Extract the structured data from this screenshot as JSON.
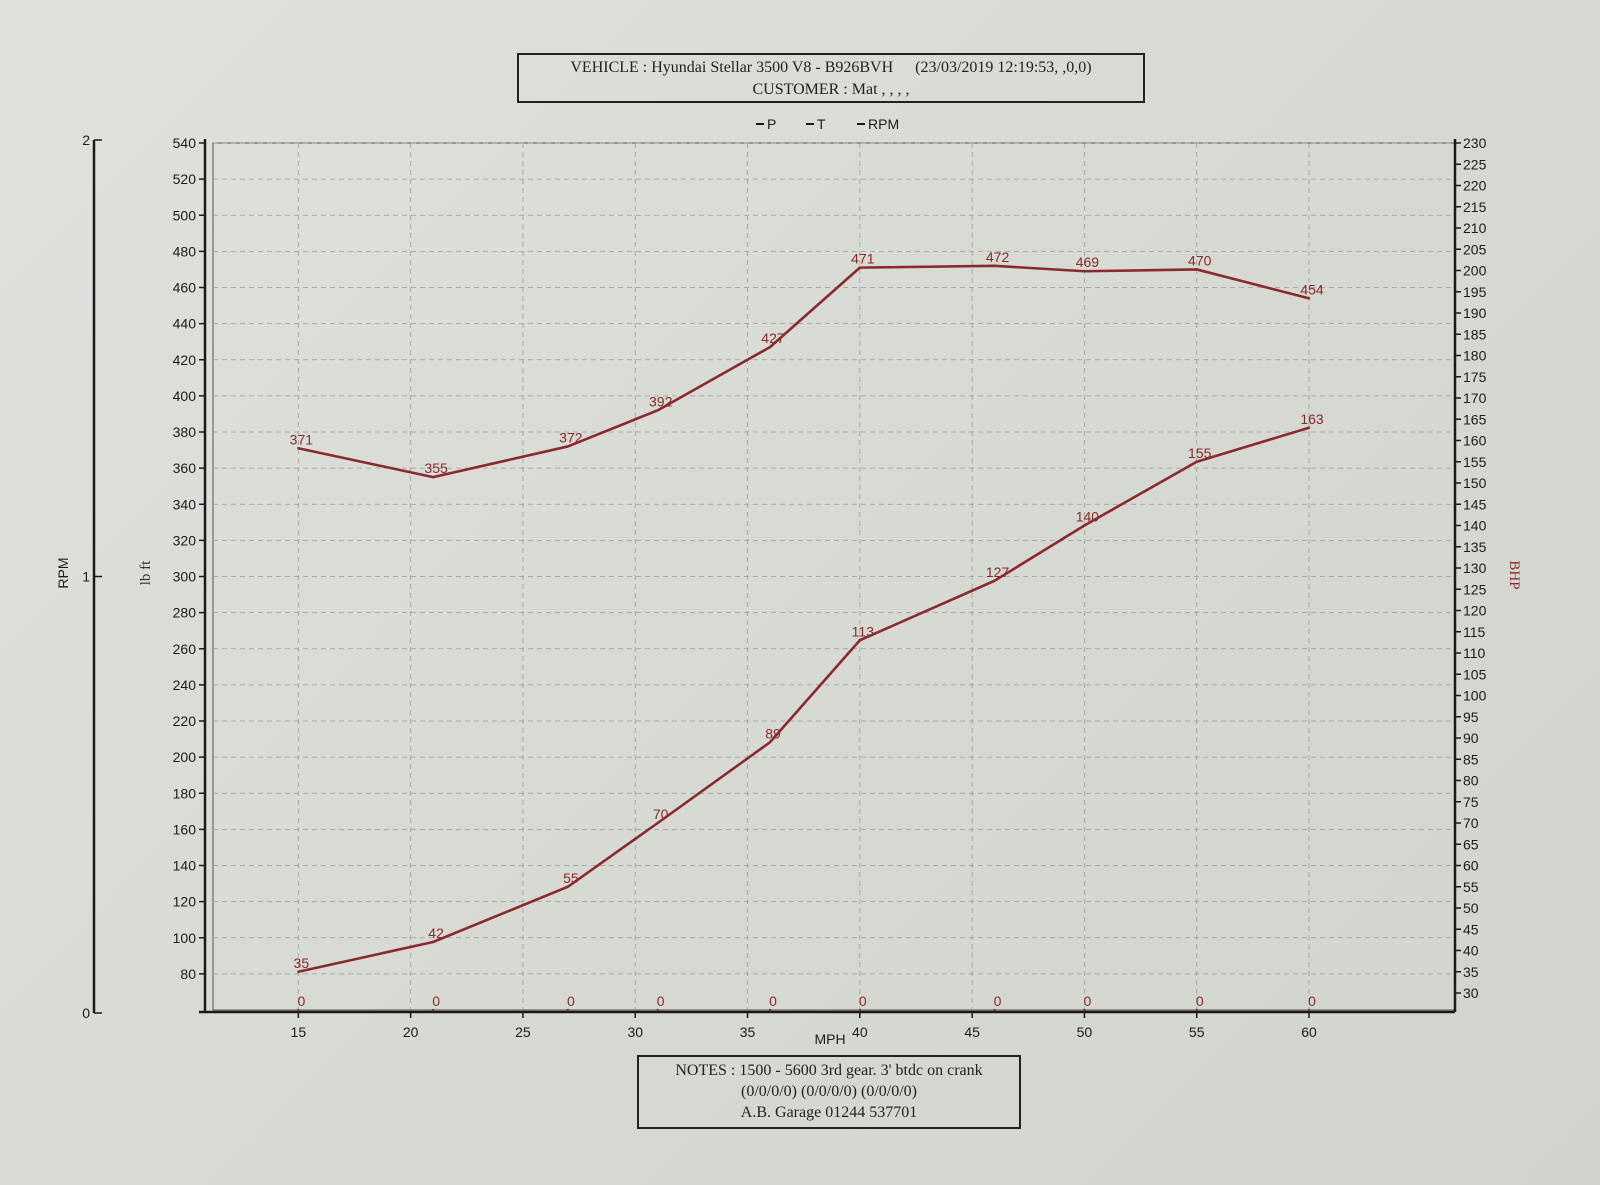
{
  "header": {
    "vehicle": "VEHICLE : Hyundai Stellar 3500 V8 - B926BVH",
    "timestamp": "(23/03/2019 12:19:53, ,0,0)",
    "customer": "CUSTOMER : Mat , , , ,"
  },
  "legend": {
    "p": "P",
    "t": "T",
    "rpm": "RPM"
  },
  "notes": {
    "line1": "NOTES : 1500 - 5600 3rd gear. 3' btdc on crank",
    "line2": "(0/0/0/0) (0/0/0/0) (0/0/0/0)",
    "line3": "A.B. Garage    01244 537701"
  },
  "colors": {
    "trace": "#8a2a2e",
    "grid": "#9a9c98",
    "axis": "#1a1a1a"
  },
  "chart_data": {
    "type": "line",
    "xlabel": "MPH",
    "x": [
      15,
      20,
      25,
      30,
      35,
      40,
      45,
      50,
      55,
      60
    ],
    "xlim": [
      11.2,
      66.5
    ],
    "xticks": [
      15,
      20,
      25,
      30,
      35,
      40,
      45,
      50,
      55,
      60
    ],
    "axes": {
      "rpm": {
        "label": "RPM",
        "ticks": [
          0,
          1,
          2
        ],
        "range": [
          0,
          2
        ]
      },
      "torque": {
        "label": "lb ft",
        "ticks": [
          80,
          100,
          120,
          140,
          160,
          180,
          200,
          220,
          240,
          260,
          280,
          300,
          320,
          340,
          360,
          380,
          400,
          420,
          440,
          460,
          480,
          500,
          520,
          540
        ],
        "range": [
          60,
          540
        ]
      },
      "power": {
        "label": "BHP",
        "ticks": [
          30,
          35,
          40,
          45,
          50,
          55,
          60,
          65,
          70,
          75,
          80,
          85,
          90,
          95,
          100,
          105,
          110,
          115,
          120,
          125,
          130,
          135,
          140,
          145,
          150,
          155,
          160,
          165,
          170,
          175,
          180,
          185,
          190,
          195,
          200,
          205,
          210,
          215,
          220,
          225,
          230
        ],
        "range": [
          26,
          230
        ]
      }
    },
    "series": [
      {
        "name": "T",
        "axis": "torque",
        "x": [
          15,
          21,
          27,
          31,
          36,
          40,
          46,
          50,
          55,
          60
        ],
        "values": [
          371,
          355,
          372,
          392,
          427,
          471,
          472,
          469,
          470,
          454
        ]
      },
      {
        "name": "P",
        "axis": "power",
        "x": [
          15,
          21,
          27,
          31,
          36,
          40,
          46,
          50,
          55,
          60
        ],
        "values": [
          35,
          42,
          55,
          70,
          89,
          113,
          127,
          140,
          155,
          163
        ]
      },
      {
        "name": "RPM",
        "axis": "rpm",
        "x": [
          15,
          21,
          27,
          31,
          36,
          40,
          46,
          50,
          55,
          60
        ],
        "values": [
          0,
          0,
          0,
          0,
          0,
          0,
          0,
          0,
          0,
          0
        ]
      }
    ],
    "grid": true,
    "legend_position": "top-center"
  }
}
